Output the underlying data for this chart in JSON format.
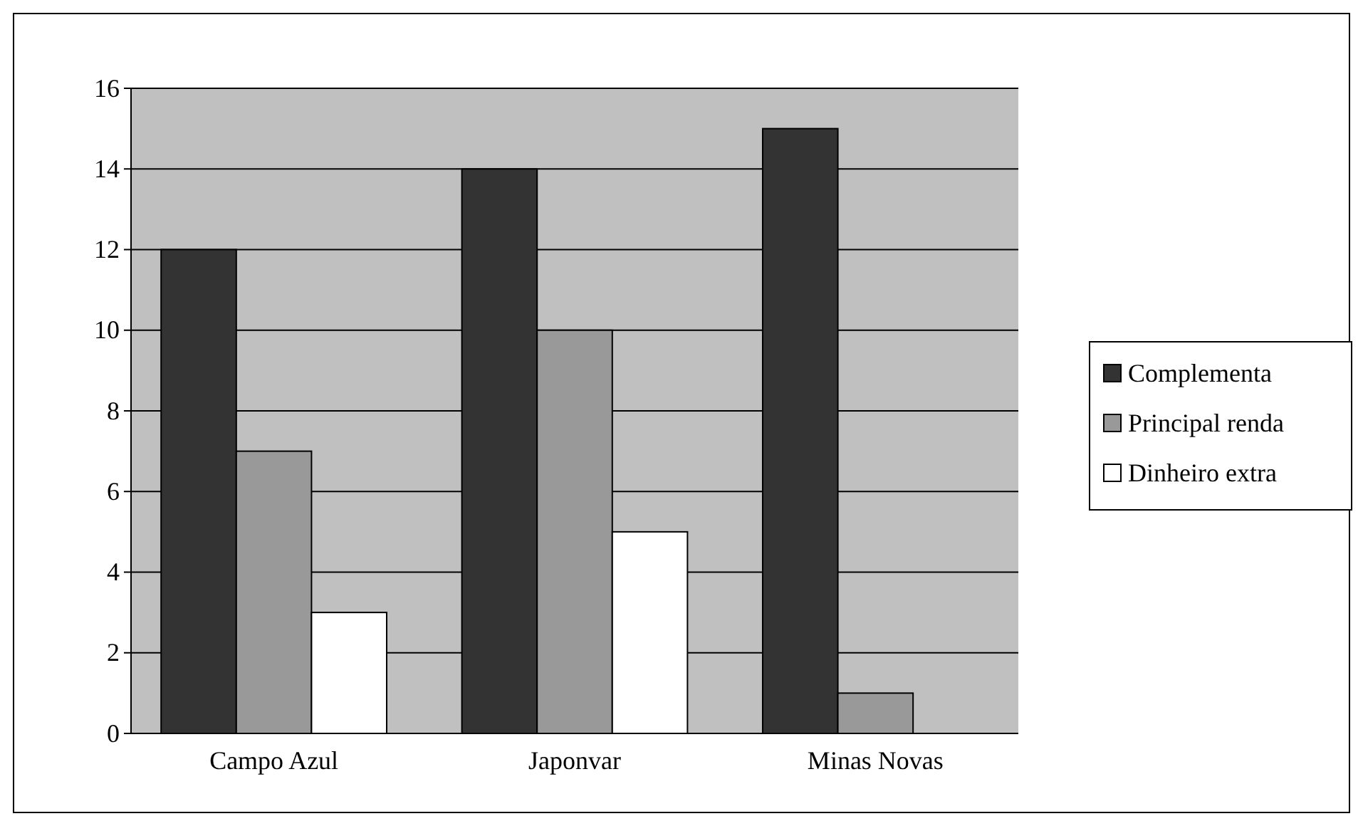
{
  "chart_data": {
    "type": "bar",
    "categories": [
      "Campo Azul",
      "Japonvar",
      "Minas Novas"
    ],
    "series": [
      {
        "name": "Complementa",
        "color": "#333333",
        "values": [
          12,
          14,
          15
        ]
      },
      {
        "name": "Principal renda",
        "color": "#999999",
        "values": [
          7,
          10,
          1
        ]
      },
      {
        "name": "Dinheiro extra",
        "color": "#ffffff",
        "values": [
          3,
          5,
          0
        ]
      }
    ],
    "ylim": [
      0,
      16
    ],
    "yticks": [
      0,
      2,
      4,
      6,
      8,
      10,
      12,
      14,
      16
    ],
    "grid": "y",
    "legend": "right"
  }
}
